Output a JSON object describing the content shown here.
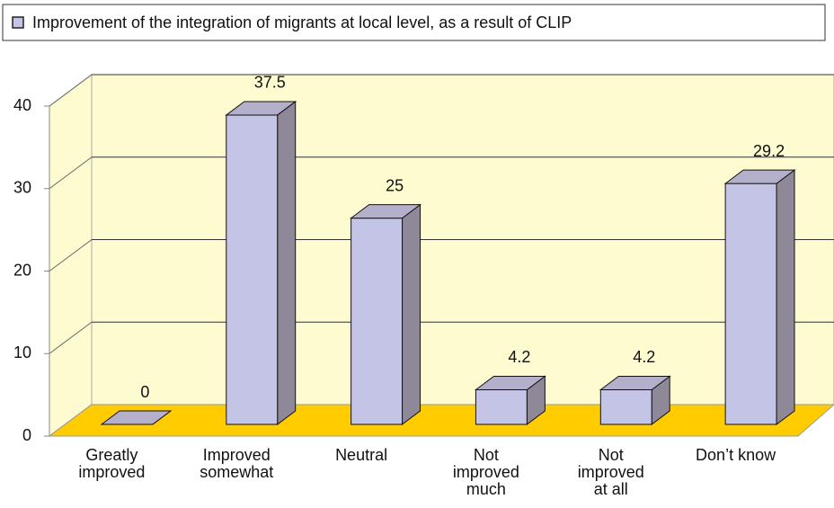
{
  "chart_data": {
    "type": "bar3d",
    "categories": [
      "Greatly improved",
      "Improved somewhat",
      "Neutral",
      "Not improved much",
      "Not improved at all",
      "Don’t know"
    ],
    "series": [
      {
        "name": "Improvement of the integration of migrants at local level, as a result of CLIP",
        "color": "#c4c4e6",
        "values": [
          0,
          37.5,
          25,
          4.2,
          4.2,
          29.2
        ]
      }
    ],
    "ylim": [
      0,
      40
    ],
    "yticks": [
      0,
      10,
      20,
      30,
      40
    ],
    "grid": true,
    "legend": "top"
  }
}
